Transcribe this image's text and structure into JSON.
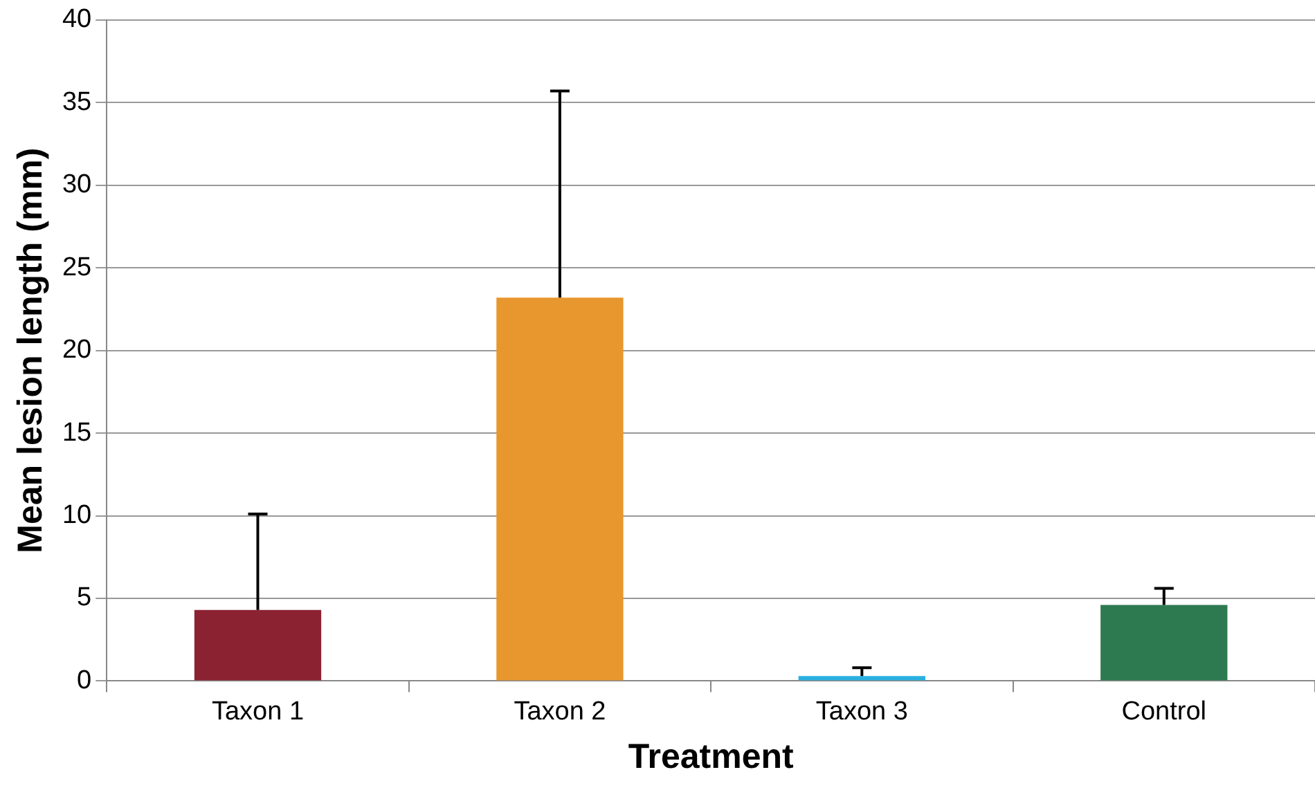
{
  "chart_data": {
    "type": "bar",
    "xlabel": "Treatment",
    "ylabel": "Mean lesion length (mm)",
    "categories": [
      "Taxon 1",
      "Taxon 2",
      "Taxon 3",
      "Control"
    ],
    "values": [
      4.3,
      23.2,
      0.3,
      4.6
    ],
    "colors": [
      "#8b2232",
      "#e8962e",
      "#2ab0e0",
      "#2e7a50"
    ],
    "errors": [
      [
        4.3,
        10.1
      ],
      [
        23.2,
        35.7
      ],
      [
        0.3,
        0.8
      ],
      [
        4.6,
        5.6
      ]
    ],
    "ylim": [
      0,
      40
    ],
    "yticks": [
      0,
      5,
      10,
      15,
      20,
      25,
      30,
      35,
      40
    ],
    "grid": "y"
  }
}
